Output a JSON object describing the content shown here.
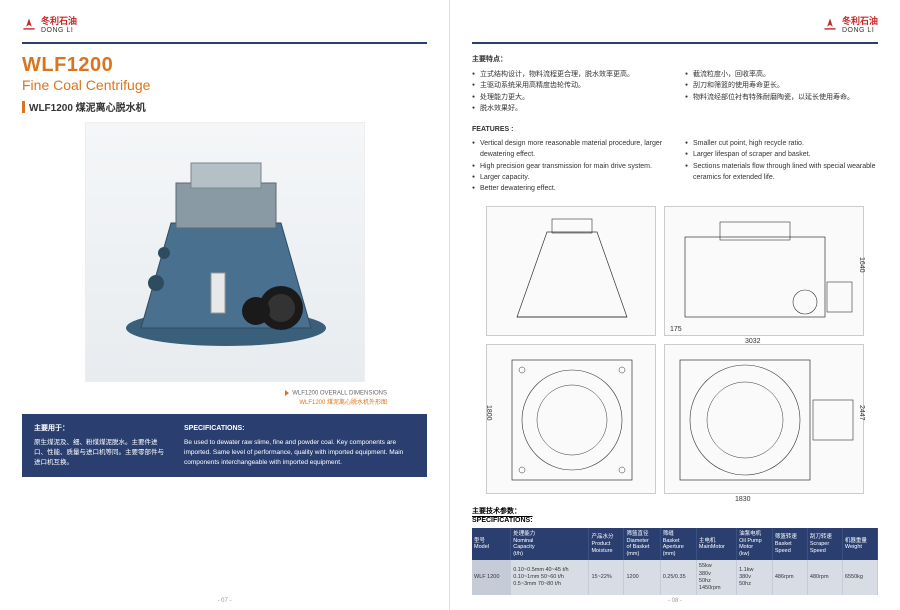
{
  "brand": {
    "cn": "冬利石油",
    "en_sub": "DONG LI",
    "color": "#c62828"
  },
  "colors": {
    "accent": "#d97520",
    "band": "#2a3f6f",
    "table_header": "#2a3f6f",
    "table_cell": "#d8dde5"
  },
  "left": {
    "model": "WLF1200",
    "product_name": "Fine Coal Centrifuge",
    "subtitle": "WLF1200 煤泥离心脱水机",
    "caption_en": "WLF1200 OVERALL DIMENSIONS",
    "caption_cn": "WLF1200 煤泥离心脱水机外形图",
    "blue": {
      "h1": "主要用于：",
      "p1": "原生煤泥及、细、粉煤煤泥脱水。主要件进口、性能、质量与进口机等同。主要零部件与进口机互换。",
      "h2": "SPECIFICATIONS:",
      "p2": "Be used to dewater raw slime, fine and powder coal. Key components are imported. Same level of performance, quality with imported equipment. Main components interchangeable with imported equipment."
    },
    "page_num": "- 07 -"
  },
  "right": {
    "features_cn_h": "主要特点：",
    "features_cn_left": [
      "立式结构设计，物料流程更合理，脱水效率更高。",
      "主驱动系统采用高精度齿轮传动。",
      "处理能力更大。",
      "脱水效果好。"
    ],
    "features_cn_right": [
      "截流粒度小，回收率高。",
      "刮刀和筛篮的使用寿命更长。",
      "物料流经部位衬有特殊耐磨陶瓷，以延长使用寿命。"
    ],
    "features_en_h": "FEATURES :",
    "features_en_left": [
      "Vertical design more reasonable material procedure, larger dewatering effect.",
      "High precision gear transmission for main drive system.",
      "Larger capacity.",
      "Better dewatering effect."
    ],
    "features_en_right": [
      "Smaller cut point, high recycle ratio.",
      "Larger lifespan of scraper and basket.",
      "Sections materials flow through lined with special wearable ceramics for extended life."
    ],
    "dims": {
      "d1": "3032",
      "d2": "1640",
      "d3": "175",
      "d4": "1830",
      "d5": "1800",
      "d6": "2447"
    },
    "spec_h_cn": "主要技术参数：",
    "spec_h_en": "SPECIFICATIONS:",
    "table": {
      "headers": [
        "型号\nModel",
        "处理能力\nNominal\nCapacity\n(t/h)",
        "产品水分\nProduct\nMoisture",
        "筛篮直径\nDiameter\nof Basket\n(mm)",
        "筛缝\nBasket\nAperture\n(mm)",
        "主电机\nMainMotor",
        "油泵电机\nOil Pump\nMotor\n(kw)",
        "筛篮转速\nBasket\nSpeed",
        "刮刀转速\nScraper\nSpeed",
        "机器重量\nWeight"
      ],
      "row": {
        "model": "WLF 1200",
        "capacity": "0.10~0.5mm 40~45 t/h\n0.10~1mm 50~60 t/h\n0.5~3mm 70~80 t/h",
        "moisture": "15~22%",
        "diameter": "1200",
        "aperture": "0.25/0.35",
        "mainmotor": "55kw\n380v\n50hz\n1450rpm",
        "oilpump": "1.1kw\n380v\n50hz",
        "basketspeed": "486rpm",
        "scraperspeed": "480rpm",
        "weight": "6550kg"
      }
    },
    "page_num": "- 08 -"
  }
}
